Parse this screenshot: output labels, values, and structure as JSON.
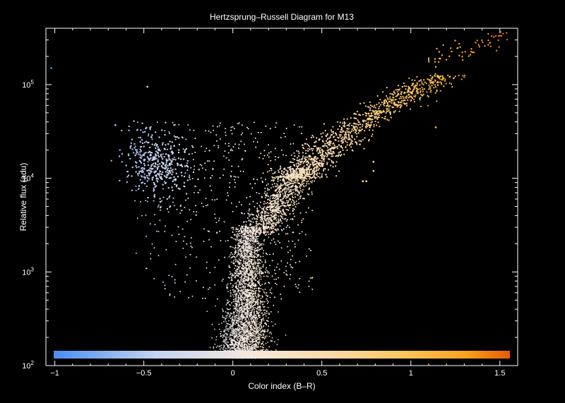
{
  "chart_data": {
    "type": "scatter",
    "title": "Hertzsprung–Russell Diagram for M13",
    "xlabel": "Color index (B–R)",
    "ylabel": "Relative flux (adu)",
    "xlim": [
      -1.05,
      1.6
    ],
    "ylim": [
      100,
      400000
    ],
    "yscale": "log",
    "grid": false,
    "x_ticks": [
      {
        "value": -1,
        "label": "−1"
      },
      {
        "value": -0.5,
        "label": "−0.5"
      },
      {
        "value": 0,
        "label": "0"
      },
      {
        "value": 0.5,
        "label": "0.5"
      },
      {
        "value": 1,
        "label": "1"
      },
      {
        "value": 1.5,
        "label": "1.5"
      }
    ],
    "y_ticks": [
      {
        "value": 100,
        "base": "10",
        "exp": "2"
      },
      {
        "value": 1000,
        "base": "10",
        "exp": "3"
      },
      {
        "value": 10000,
        "base": "10",
        "exp": "4"
      },
      {
        "value": 100000,
        "base": "10",
        "exp": "5"
      }
    ],
    "colorbar": {
      "placement": "bottom-inside",
      "stops": [
        {
          "value": -1.05,
          "color": "#4a8ef0"
        },
        {
          "value": -0.45,
          "color": "#c4d4f2"
        },
        {
          "value": 0.1,
          "color": "#f5e8dc"
        },
        {
          "value": 0.6,
          "color": "#fbd8a2"
        },
        {
          "value": 1.0,
          "color": "#fcc45a"
        },
        {
          "value": 1.35,
          "color": "#f7a11d"
        },
        {
          "value": 1.6,
          "color": "#e85a06"
        }
      ]
    },
    "series": [
      {
        "values": [
          {
            "x": -1.02,
            "y": 150000
          },
          {
            "x": 1.14,
            "y": 35000
          },
          {
            "x": 0.73,
            "y": 9300
          },
          {
            "x": 0.75,
            "y": 9300
          },
          {
            "x": 0.79,
            "y": 15000
          },
          {
            "x": 0.79,
            "y": 12000
          },
          {
            "x": -0.48,
            "y": 95000
          },
          {
            "x": -0.66,
            "y": 37000
          }
        ]
      }
    ],
    "populations": [
      {
        "kind": "main-sequence",
        "color_range": [
          -0.1,
          0.25
        ],
        "flux_range": [
          130,
          3000
        ]
      },
      {
        "kind": "red-giant-branch",
        "color_range": [
          0.1,
          1.55
        ],
        "flux_range": [
          3000,
          380000
        ]
      },
      {
        "kind": "horizontal-branch",
        "color_range": [
          -0.6,
          -0.2
        ],
        "flux_range": [
          8000,
          35000
        ]
      }
    ]
  }
}
